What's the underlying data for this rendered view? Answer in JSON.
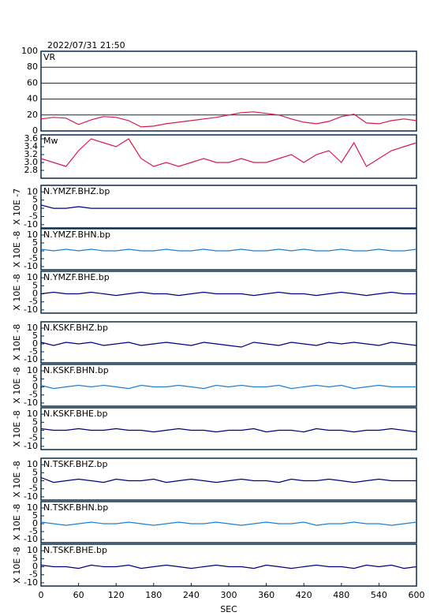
{
  "chart_data": [
    {
      "type": "line",
      "title": "2022/07/31 21:50",
      "ylim": [
        0,
        100
      ],
      "yticks": [
        0,
        20,
        40,
        60,
        80,
        100
      ],
      "grid": true,
      "xlim": [
        0,
        600
      ],
      "x": [
        0,
        20,
        40,
        60,
        80,
        100,
        120,
        140,
        160,
        180,
        200,
        220,
        240,
        260,
        280,
        300,
        320,
        340,
        360,
        380,
        400,
        420,
        440,
        460,
        480,
        500,
        520,
        540,
        560,
        580,
        600
      ],
      "series": [
        {
          "name": "VR",
          "color": "#d81b4a",
          "values": [
            15,
            17,
            16,
            8,
            14,
            18,
            17,
            13,
            5,
            6,
            9,
            11,
            13,
            15,
            17,
            20,
            23,
            24,
            22,
            20,
            15,
            11,
            9,
            12,
            18,
            21,
            10,
            9,
            13,
            15,
            13
          ]
        }
      ]
    },
    {
      "type": "line",
      "ylim": [
        2.6,
        3.7
      ],
      "yticks": [
        2.8,
        {
          "value": 3,
          "label": "3.0"
        },
        3.2,
        3.4,
        3.6
      ],
      "xlim": [
        0,
        600
      ],
      "x": [
        0,
        20,
        40,
        60,
        80,
        100,
        120,
        140,
        160,
        180,
        200,
        220,
        240,
        260,
        280,
        300,
        320,
        340,
        360,
        380,
        400,
        420,
        440,
        460,
        480,
        500,
        520,
        540,
        560,
        580,
        600
      ],
      "series": [
        {
          "name": "Mw",
          "color": "#d81b4a",
          "values": [
            3.1,
            3.0,
            2.9,
            3.3,
            3.6,
            3.5,
            3.4,
            3.6,
            3.1,
            2.9,
            3.0,
            2.9,
            3.0,
            3.1,
            3.0,
            3.0,
            3.1,
            3.0,
            3.0,
            3.1,
            3.2,
            3.0,
            3.2,
            3.3,
            3.0,
            3.5,
            2.9,
            3.1,
            3.3,
            3.4,
            3.5
          ]
        }
      ]
    },
    {
      "type": "line",
      "ylabel": "X 10E -7",
      "ylim": [
        -12,
        14
      ],
      "yticks": [
        -10,
        -5,
        0,
        5,
        10
      ],
      "xlim": [
        0,
        600
      ],
      "x": [
        0,
        20,
        40,
        60,
        80,
        100,
        120,
        140,
        160,
        180,
        200,
        220,
        240,
        260,
        280,
        300,
        320,
        340,
        360,
        380,
        400,
        420,
        440,
        460,
        480,
        500,
        520,
        540,
        560,
        580,
        600
      ],
      "series": [
        {
          "name": "N.YMZF.BHZ.bp",
          "color": "#000080",
          "values": [
            2,
            0,
            0,
            1,
            0,
            0,
            0,
            0,
            0,
            0,
            0,
            0,
            0,
            0,
            0,
            0,
            0,
            0,
            0,
            0,
            0,
            0,
            0,
            0,
            0,
            0,
            0,
            0,
            0,
            0,
            0
          ]
        }
      ]
    },
    {
      "type": "line",
      "ylabel": "X 10E -8",
      "ylim": [
        -12,
        14
      ],
      "yticks": [
        -10,
        -5,
        0,
        5,
        10
      ],
      "xlim": [
        0,
        600
      ],
      "x": [
        0,
        20,
        40,
        60,
        80,
        100,
        120,
        140,
        160,
        180,
        200,
        220,
        240,
        260,
        280,
        300,
        320,
        340,
        360,
        380,
        400,
        420,
        440,
        460,
        480,
        500,
        520,
        540,
        560,
        580,
        600
      ],
      "series": [
        {
          "name": "N.YMZF.BHN.bp",
          "color": "#1e7fd0",
          "values": [
            1,
            0,
            1,
            0,
            1,
            0,
            0,
            1,
            0,
            0,
            1,
            0,
            0,
            1,
            0,
            0,
            1,
            0,
            0,
            1,
            0,
            1,
            0,
            0,
            1,
            0,
            0,
            1,
            0,
            0,
            1
          ]
        }
      ]
    },
    {
      "type": "line",
      "ylabel": "X 10E -8",
      "ylim": [
        -12,
        14
      ],
      "yticks": [
        -10,
        -5,
        0,
        5,
        10
      ],
      "xlim": [
        0,
        600
      ],
      "x": [
        0,
        20,
        40,
        60,
        80,
        100,
        120,
        140,
        160,
        180,
        200,
        220,
        240,
        260,
        280,
        300,
        320,
        340,
        360,
        380,
        400,
        420,
        440,
        460,
        480,
        500,
        520,
        540,
        560,
        580,
        600
      ],
      "series": [
        {
          "name": "N.YMZF.BHE.bp",
          "color": "#000080",
          "values": [
            0,
            1,
            0,
            0,
            1,
            0,
            -1,
            0,
            1,
            0,
            0,
            -1,
            0,
            1,
            0,
            0,
            0,
            -1,
            0,
            1,
            0,
            0,
            -1,
            0,
            1,
            0,
            -1,
            0,
            1,
            0,
            0
          ]
        }
      ]
    },
    {
      "type": "line",
      "ylabel": "X 10E -8",
      "ylim": [
        -12,
        14
      ],
      "yticks": [
        -10,
        -5,
        0,
        5,
        10
      ],
      "xlim": [
        0,
        600
      ],
      "x": [
        0,
        20,
        40,
        60,
        80,
        100,
        120,
        140,
        160,
        180,
        200,
        220,
        240,
        260,
        280,
        300,
        320,
        340,
        360,
        380,
        400,
        420,
        440,
        460,
        480,
        500,
        520,
        540,
        560,
        580,
        600
      ],
      "series": [
        {
          "name": "N.KSKF.BHZ.bp",
          "color": "#000080",
          "values": [
            1,
            -1,
            1,
            0,
            1,
            -1,
            0,
            1,
            -1,
            0,
            1,
            0,
            -1,
            1,
            0,
            -1,
            -2,
            1,
            0,
            -1,
            1,
            0,
            -1,
            1,
            0,
            1,
            0,
            -1,
            1,
            0,
            -1
          ]
        }
      ]
    },
    {
      "type": "line",
      "ylabel": "X 10E -8",
      "ylim": [
        -12,
        14
      ],
      "yticks": [
        -10,
        -5,
        0,
        5,
        10
      ],
      "xlim": [
        0,
        600
      ],
      "x": [
        0,
        20,
        40,
        60,
        80,
        100,
        120,
        140,
        160,
        180,
        200,
        220,
        240,
        260,
        280,
        300,
        320,
        340,
        360,
        380,
        400,
        420,
        440,
        460,
        480,
        500,
        520,
        540,
        560,
        580,
        600
      ],
      "series": [
        {
          "name": "N.KSKF.BHN.bp",
          "color": "#1e7fd0",
          "values": [
            1,
            -1,
            0,
            1,
            0,
            1,
            0,
            -1,
            1,
            0,
            0,
            1,
            0,
            -1,
            1,
            0,
            1,
            0,
            0,
            1,
            -1,
            0,
            1,
            0,
            1,
            -1,
            0,
            1,
            0,
            0,
            0
          ]
        }
      ]
    },
    {
      "type": "line",
      "ylabel": "X 10E -8",
      "ylim": [
        -12,
        14
      ],
      "yticks": [
        -10,
        -5,
        0,
        5,
        10
      ],
      "xlim": [
        0,
        600
      ],
      "x": [
        0,
        20,
        40,
        60,
        80,
        100,
        120,
        140,
        160,
        180,
        200,
        220,
        240,
        260,
        280,
        300,
        320,
        340,
        360,
        380,
        400,
        420,
        440,
        460,
        480,
        500,
        520,
        540,
        560,
        580,
        600
      ],
      "series": [
        {
          "name": "N.KSKF.BHE.bp",
          "color": "#000080",
          "values": [
            1,
            0,
            0,
            1,
            0,
            0,
            1,
            0,
            0,
            -1,
            0,
            1,
            0,
            0,
            -1,
            0,
            0,
            1,
            -1,
            0,
            0,
            -1,
            1,
            0,
            0,
            -1,
            0,
            0,
            1,
            0,
            -1
          ]
        }
      ]
    },
    {
      "type": "line",
      "ylabel": "X 10E -8",
      "ylim": [
        -12,
        14
      ],
      "yticks": [
        -10,
        -5,
        0,
        5,
        10
      ],
      "xlim": [
        0,
        600
      ],
      "x": [
        0,
        20,
        40,
        60,
        80,
        100,
        120,
        140,
        160,
        180,
        200,
        220,
        240,
        260,
        280,
        300,
        320,
        340,
        360,
        380,
        400,
        420,
        440,
        460,
        480,
        500,
        520,
        540,
        560,
        580,
        600
      ],
      "series": [
        {
          "name": "N.TSKF.BHZ.bp",
          "color": "#000080",
          "values": [
            2,
            -1,
            0,
            1,
            0,
            -1,
            1,
            0,
            0,
            1,
            -1,
            0,
            1,
            0,
            -1,
            0,
            1,
            0,
            0,
            -1,
            1,
            0,
            0,
            1,
            0,
            -1,
            0,
            1,
            0,
            0,
            0
          ]
        }
      ]
    },
    {
      "type": "line",
      "ylabel": "X 10E -8",
      "ylim": [
        -12,
        14
      ],
      "yticks": [
        -10,
        -5,
        0,
        5,
        10
      ],
      "xlim": [
        0,
        600
      ],
      "x": [
        0,
        20,
        40,
        60,
        80,
        100,
        120,
        140,
        160,
        180,
        200,
        220,
        240,
        260,
        280,
        300,
        320,
        340,
        360,
        380,
        400,
        420,
        440,
        460,
        480,
        500,
        520,
        540,
        560,
        580,
        600
      ],
      "series": [
        {
          "name": "N.TSKF.BHN.bp",
          "color": "#1e7fd0",
          "values": [
            1,
            0,
            -1,
            0,
            1,
            0,
            0,
            1,
            0,
            -1,
            0,
            1,
            0,
            0,
            1,
            0,
            -1,
            0,
            1,
            0,
            0,
            1,
            -1,
            0,
            0,
            1,
            0,
            0,
            -1,
            0,
            1
          ]
        }
      ]
    },
    {
      "type": "line",
      "ylabel": "X 10E -8",
      "ylim": [
        -12,
        14
      ],
      "yticks": [
        -10,
        -5,
        0,
        5,
        10
      ],
      "xlim": [
        0,
        600
      ],
      "xticks": [
        0,
        60,
        120,
        180,
        240,
        300,
        360,
        420,
        480,
        540,
        600
      ],
      "xlabel": "SEC",
      "x": [
        0,
        20,
        40,
        60,
        80,
        100,
        120,
        140,
        160,
        180,
        200,
        220,
        240,
        260,
        280,
        300,
        320,
        340,
        360,
        380,
        400,
        420,
        440,
        460,
        480,
        500,
        520,
        540,
        560,
        580,
        600
      ],
      "series": [
        {
          "name": "N.TSKF.BHE.bp",
          "color": "#000080",
          "values": [
            1,
            0,
            0,
            -1,
            1,
            0,
            0,
            1,
            -1,
            0,
            1,
            0,
            -1,
            0,
            1,
            0,
            0,
            -1,
            1,
            0,
            -1,
            0,
            1,
            0,
            0,
            -1,
            1,
            0,
            1,
            -1,
            0
          ]
        }
      ]
    }
  ]
}
